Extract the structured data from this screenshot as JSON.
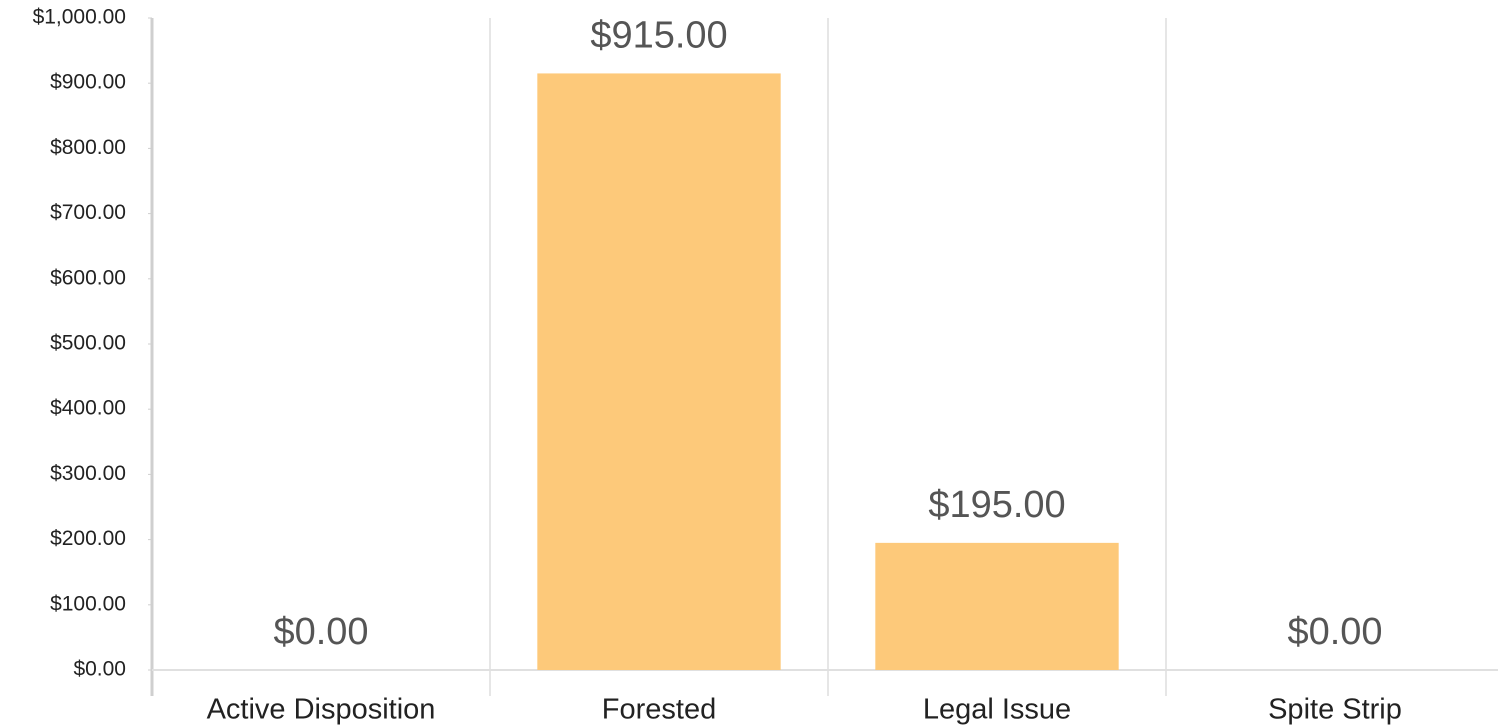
{
  "chart_data": {
    "type": "bar",
    "categories": [
      "Active Disposition",
      "Forested",
      "Legal Issue",
      "Spite Strip"
    ],
    "values": [
      0,
      915,
      195,
      0
    ],
    "value_labels": [
      "$0.00",
      "$915.00",
      "$195.00",
      "$0.00"
    ],
    "color": "#fdc97a",
    "ylim": [
      0,
      1000
    ],
    "yticks": [
      {
        "value": 0,
        "label": "$0.00"
      },
      {
        "value": 100,
        "label": "$100.00"
      },
      {
        "value": 200,
        "label": "$200.00"
      },
      {
        "value": 300,
        "label": "$300.00"
      },
      {
        "value": 400,
        "label": "$400.00"
      },
      {
        "value": 500,
        "label": "$500.00"
      },
      {
        "value": 600,
        "label": "$600.00"
      },
      {
        "value": 700,
        "label": "$700.00"
      },
      {
        "value": 800,
        "label": "$800.00"
      },
      {
        "value": 900,
        "label": "$900.00"
      },
      {
        "value": 1000,
        "label": "$1,000.00"
      }
    ],
    "grid": false
  }
}
